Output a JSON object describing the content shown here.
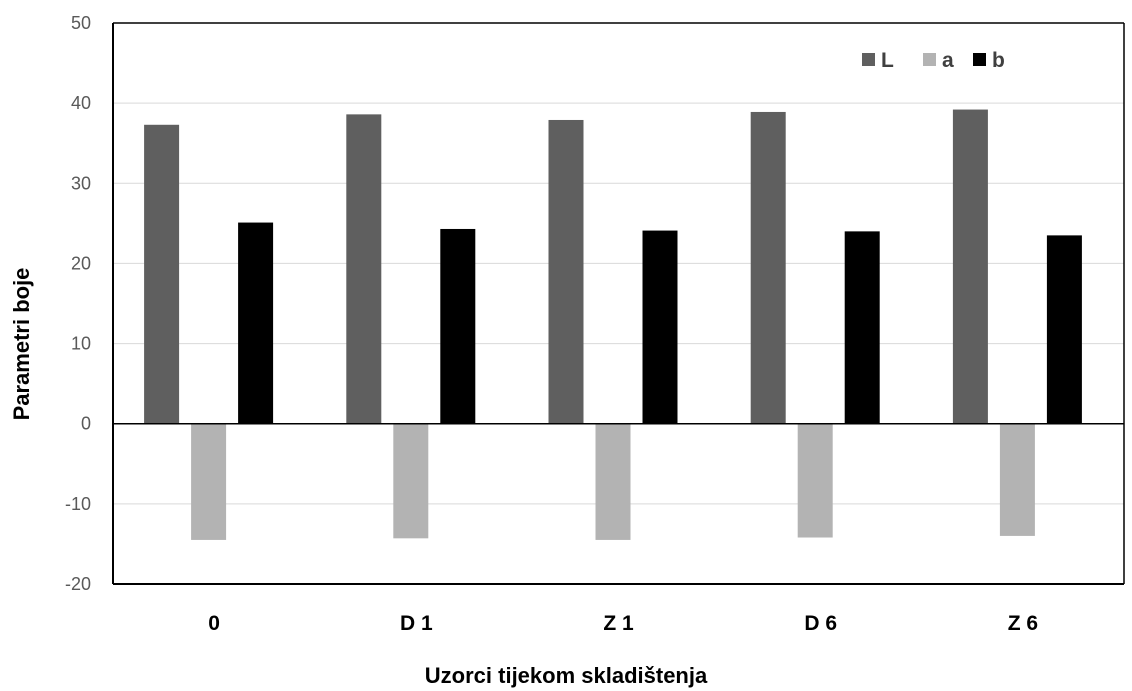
{
  "chart_data": {
    "type": "bar",
    "title": "",
    "xlabel": "Uzorci tijekom skladištenja",
    "ylabel": "Parametri boje",
    "categories": [
      "0",
      "D 1",
      "Z 1",
      "D 6",
      "Z 6"
    ],
    "ylim": [
      -20,
      50
    ],
    "yticks": [
      -20,
      -10,
      0,
      10,
      20,
      30,
      40,
      50
    ],
    "grid": true,
    "legend_position": "top-right",
    "series": [
      {
        "name": "L",
        "color": "#5f5f5f",
        "values": [
          37.3,
          38.6,
          37.9,
          38.9,
          39.2
        ]
      },
      {
        "name": "a",
        "color": "#b3b3b3",
        "values": [
          -14.5,
          -14.3,
          -14.5,
          -14.2,
          -14.0
        ]
      },
      {
        "name": "b",
        "color": "#000000",
        "values": [
          25.1,
          24.3,
          24.1,
          24.0,
          23.5
        ]
      }
    ]
  }
}
